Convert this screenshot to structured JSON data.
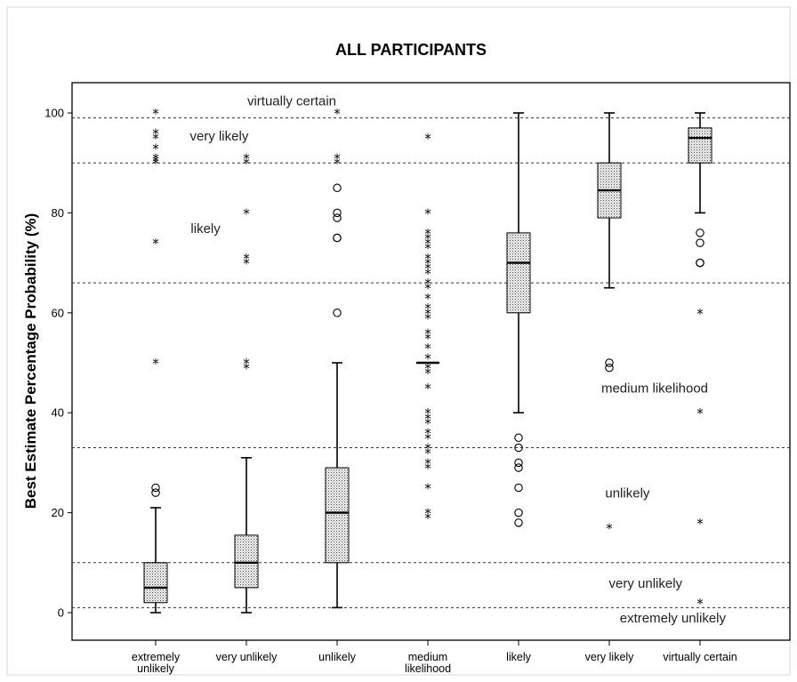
{
  "chart_data": {
    "type": "boxplot",
    "title": "ALL PARTICIPANTS",
    "ylabel": "Best Estimate Percentage Probability (%)",
    "xlabel": "",
    "ylim": [
      -5,
      105
    ],
    "yticks": [
      0,
      20,
      40,
      60,
      80,
      100
    ],
    "grid": false,
    "categories": [
      "extremely unlikely",
      "very unlikely",
      "unlikely",
      "medium likelihood",
      "likely",
      "very likely",
      "virtually certain"
    ],
    "boxes": [
      {
        "min": 0,
        "q1": 2,
        "median": 5,
        "q3": 10,
        "max": 21,
        "outliers": [
          24,
          25
        ],
        "extremes": [
          50,
          74,
          90,
          90.5,
          91,
          93,
          95,
          96,
          100
        ]
      },
      {
        "min": 0,
        "q1": 5,
        "median": 10,
        "q3": 15.5,
        "max": 31,
        "outliers": [],
        "extremes": [
          49,
          50,
          70,
          71,
          80,
          90,
          91
        ]
      },
      {
        "min": 1,
        "q1": 10,
        "median": 20,
        "q3": 29,
        "max": 50,
        "outliers": [
          60,
          75,
          75,
          79,
          80,
          85
        ],
        "extremes": [
          90,
          91,
          100
        ]
      },
      {
        "min": 50,
        "q1": 50,
        "median": 50,
        "q3": 50,
        "max": 50,
        "outliers": [],
        "extremes": [
          19,
          20,
          25,
          29,
          30,
          32,
          33,
          35,
          36,
          38,
          39,
          40,
          45,
          48,
          49,
          51,
          53,
          55,
          56,
          59,
          60,
          61,
          63,
          65,
          66,
          68,
          69,
          70,
          71,
          73,
          74,
          75,
          76,
          80,
          95
        ]
      },
      {
        "min": 40,
        "q1": 60,
        "median": 70,
        "q3": 76,
        "max": 100,
        "outliers": [
          18,
          20,
          25,
          29,
          30,
          33,
          35
        ],
        "extremes": []
      },
      {
        "min": 65,
        "q1": 79,
        "median": 84.5,
        "q3": 90,
        "max": 100,
        "outliers": [
          49,
          50
        ],
        "extremes": [
          17
        ]
      },
      {
        "min": 80,
        "q1": 90,
        "median": 95,
        "q3": 97,
        "max": 100,
        "outliers": [
          70,
          70,
          74,
          76
        ],
        "extremes": [
          2,
          18,
          40,
          60
        ]
      }
    ],
    "reference_lines": [
      1,
      10,
      33,
      66,
      90,
      99
    ],
    "annotations": [
      {
        "text": "virtually certain",
        "x": 2.5,
        "y": 101.5
      },
      {
        "text": "very likely",
        "x": 1.7,
        "y": 94.5
      },
      {
        "text": "likely",
        "x": 1.55,
        "y": 76
      },
      {
        "text": "medium likelihood",
        "x": 6.5,
        "y": 44
      },
      {
        "text": "unlikely",
        "x": 6.2,
        "y": 23
      },
      {
        "text": "very unlikely",
        "x": 6.4,
        "y": 5
      },
      {
        "text": "extremely unlikely",
        "x": 6.7,
        "y": -2
      }
    ]
  }
}
